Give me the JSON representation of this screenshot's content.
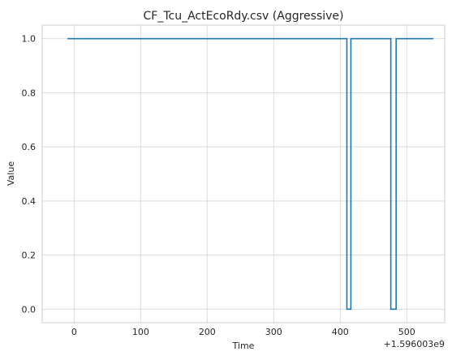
{
  "chart_data": {
    "type": "line",
    "title": "CF_Tcu_ActEcoRdy.csv (Aggressive)",
    "xlabel": "Time",
    "ylabel": "Value",
    "x_offset_label": "+1.596003e9",
    "xlim": [
      -48,
      557
    ],
    "ylim": [
      -0.05,
      1.05
    ],
    "xticks": [
      0,
      100,
      200,
      300,
      400,
      500
    ],
    "xtick_labels": [
      "0",
      "100",
      "200",
      "300",
      "400",
      "500"
    ],
    "yticks": [
      0.0,
      0.2,
      0.4,
      0.6,
      0.8,
      1.0
    ],
    "ytick_labels": [
      "0.0",
      "0.2",
      "0.4",
      "0.6",
      "0.8",
      "1.0"
    ],
    "grid": true,
    "legend": "none",
    "series": [
      {
        "color": "#1f77b4",
        "step": true,
        "x": [
          -10,
          410,
          410,
          416,
          416,
          476,
          476,
          484,
          484,
          540
        ],
        "y": [
          1,
          1,
          0,
          0,
          1,
          1,
          0,
          0,
          1,
          1
        ]
      }
    ]
  }
}
